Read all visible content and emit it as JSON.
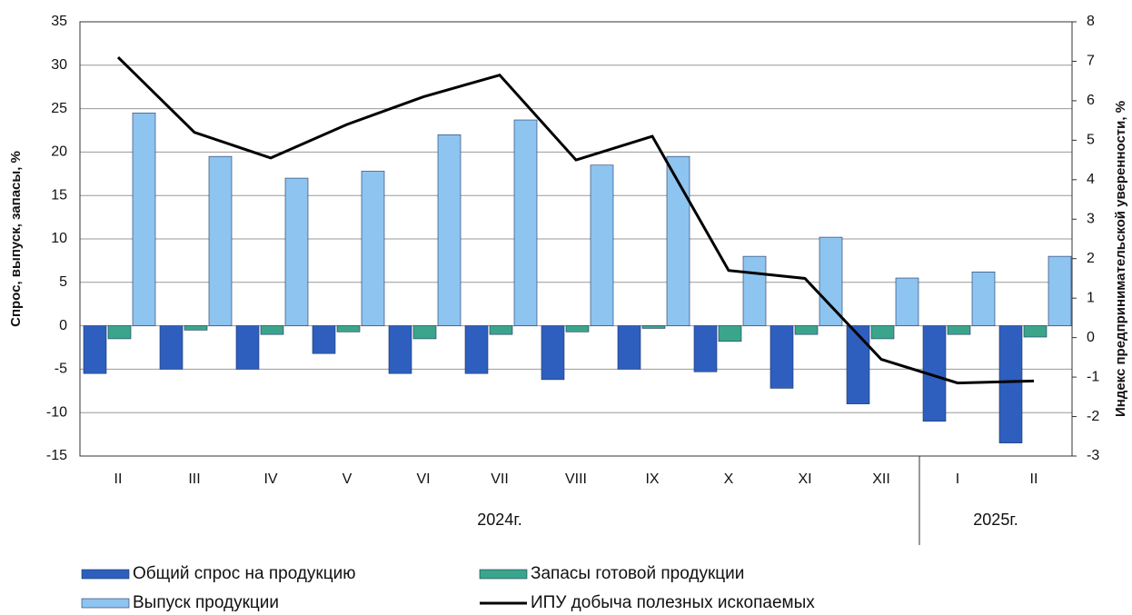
{
  "chart_data": {
    "type": "bar",
    "y_label": "Спрос, выпуск, запасы, %",
    "y2_label": "Индекс предпринимательской уверенности, %",
    "categories": [
      "II",
      "III",
      "IV",
      "V",
      "VI",
      "VII",
      "VIII",
      "IX",
      "X",
      "XI",
      "XII",
      "I",
      "II"
    ],
    "groups": [
      {
        "label": "2024г.",
        "span": 11
      },
      {
        "label": "2025г.",
        "span": 2
      }
    ],
    "series": [
      {
        "name": "Общий спрос на продукцию",
        "color": "#2e5fbf",
        "type": "bar",
        "values": [
          -5.5,
          -5,
          -5,
          -3.2,
          -5.5,
          -5.5,
          -6.2,
          -5,
          -5.3,
          -7.2,
          -9,
          -11,
          -13.5
        ]
      },
      {
        "name": "Запасы готовой продукции",
        "color": "#3aa58a",
        "type": "bar",
        "values": [
          -1.5,
          -0.5,
          -1,
          -0.7,
          -1.5,
          -1,
          -0.7,
          -0.3,
          -1.8,
          -1,
          -1.5,
          -1,
          -1.3
        ]
      },
      {
        "name": "Выпуск продукции",
        "color": "#8ec4f0",
        "type": "bar",
        "values": [
          24.5,
          19.5,
          17,
          17.8,
          22,
          23.7,
          18.5,
          19.5,
          8,
          10.2,
          5.5,
          6.2,
          8
        ]
      },
      {
        "name": "ИПУ добыча полезных ископаемых",
        "color": "#000000",
        "type": "line",
        "axis": "y2",
        "values": [
          7.1,
          5.2,
          4.55,
          5.4,
          6.1,
          6.65,
          4.5,
          5.1,
          1.7,
          1.5,
          -0.55,
          -1.15,
          -1.1
        ]
      }
    ],
    "ylim": [
      -15,
      35
    ],
    "yticks": [
      -15,
      -10,
      -5,
      0,
      5,
      10,
      15,
      20,
      25,
      30,
      35
    ],
    "y2lim": [
      -3,
      8
    ],
    "y2ticks": [
      -3,
      -2,
      -1,
      0,
      1,
      2,
      3,
      4,
      5,
      6,
      7,
      8
    ],
    "grid": true
  }
}
